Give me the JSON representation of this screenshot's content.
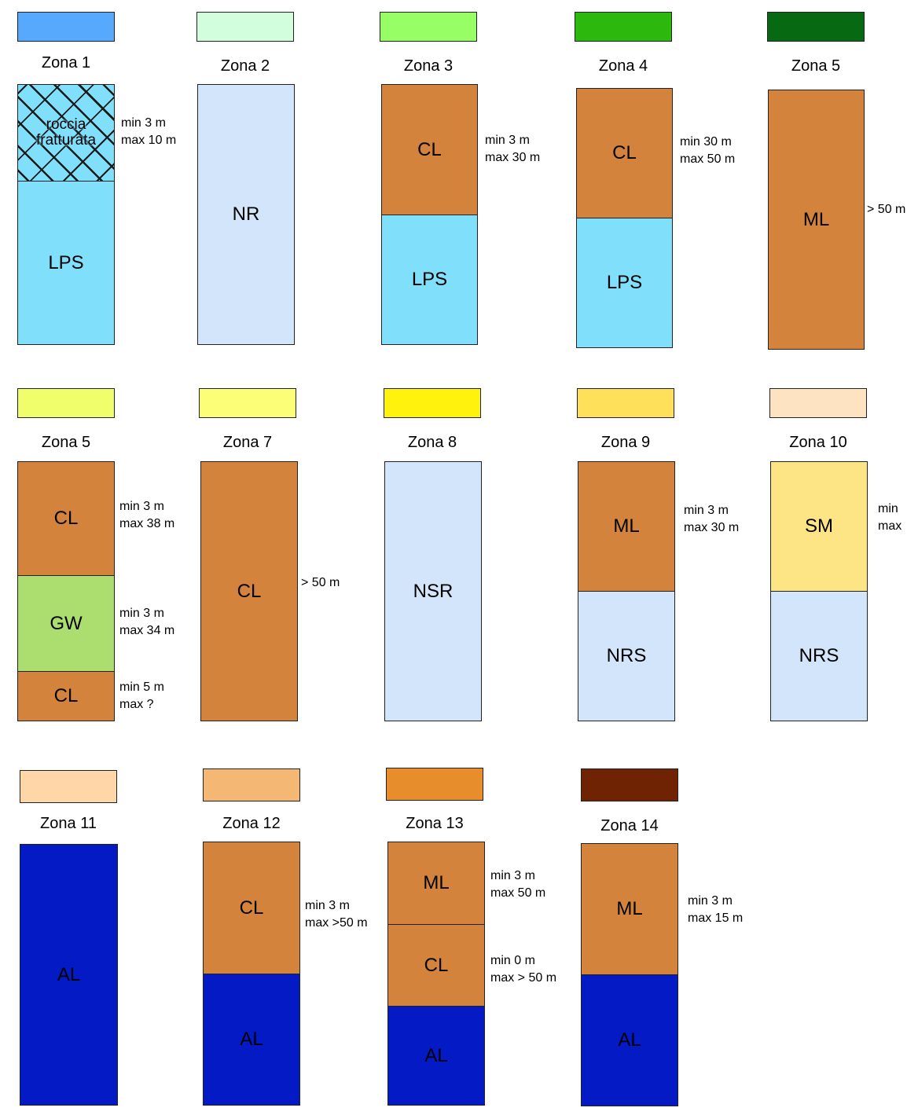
{
  "zones": [
    {
      "name": "Zona 1",
      "swatch_color": "#56a9fd",
      "layers": [
        {
          "label": "roccia\nfratturata",
          "color": "#80e0fc",
          "pattern": "hatch",
          "note": "min 3 m\nmax 10 m"
        },
        {
          "label": "LPS",
          "color": "#80e0fc",
          "note": ""
        }
      ]
    },
    {
      "name": "Zona 2",
      "swatch_color": "#d2fedd",
      "layers": [
        {
          "label": "NR",
          "color": "#d2e5fa",
          "note": ""
        }
      ]
    },
    {
      "name": "Zona 3",
      "swatch_color": "#98fe66",
      "layers": [
        {
          "label": "CL",
          "color": "#d3833c",
          "note": "min 3 m\nmax 30 m"
        },
        {
          "label": "LPS",
          "color": "#80e0fc",
          "note": ""
        }
      ]
    },
    {
      "name": "Zona 4",
      "swatch_color": "#2db80e",
      "layers": [
        {
          "label": "CL",
          "color": "#d3833c",
          "note": "min 30 m\nmax 50 m"
        },
        {
          "label": "LPS",
          "color": "#80e0fc",
          "note": ""
        }
      ]
    },
    {
      "name": "Zona 5",
      "swatch_color": "#076a12",
      "layers": [
        {
          "label": "ML",
          "color": "#d3833c",
          "note": "> 50 m"
        }
      ]
    },
    {
      "name": "Zona 5",
      "swatch_color": "#f0fe6c",
      "layers": [
        {
          "label": "CL",
          "color": "#d3833c",
          "note": "min 3 m\nmax 38 m"
        },
        {
          "label": "GW",
          "color": "#acdd6f",
          "note": "min 3 m\nmax 34 m"
        },
        {
          "label": "CL",
          "color": "#d3833c",
          "note": "min 5 m\nmax ?"
        }
      ]
    },
    {
      "name": "Zona 7",
      "swatch_color": "#fdfe78",
      "layers": [
        {
          "label": "CL",
          "color": "#d3833c",
          "note": "> 50 m"
        }
      ]
    },
    {
      "name": "Zona 8",
      "swatch_color": "#fff20c",
      "layers": [
        {
          "label": "NSR",
          "color": "#d2e5fa",
          "note": ""
        }
      ]
    },
    {
      "name": "Zona 9",
      "swatch_color": "#fee05a",
      "layers": [
        {
          "label": "ML",
          "color": "#d3833c",
          "note": "min 3 m\nmax 30 m"
        },
        {
          "label": "NRS",
          "color": "#d2e5fa",
          "note": ""
        }
      ]
    },
    {
      "name": "Zona 10",
      "swatch_color": "#fee3c3",
      "layers": [
        {
          "label": "SM",
          "color": "#fde485",
          "note": "min\nmax"
        },
        {
          "label": "NRS",
          "color": "#d2e5fa",
          "note": ""
        }
      ]
    },
    {
      "name": "Zona 11",
      "swatch_color": "#fed6a8",
      "layers": [
        {
          "label": "AL",
          "color": "#041ac4",
          "note": ""
        }
      ]
    },
    {
      "name": "Zona 12",
      "swatch_color": "#f5b874",
      "layers": [
        {
          "label": "CL",
          "color": "#d3833c",
          "note": "min 3 m\nmax >50 m"
        },
        {
          "label": "AL",
          "color": "#041ac4",
          "note": ""
        }
      ]
    },
    {
      "name": "Zona 13",
      "swatch_color": "#e78d2b",
      "layers": [
        {
          "label": "ML",
          "color": "#d3833c",
          "note": "min 3 m\nmax 50 m"
        },
        {
          "label": "CL",
          "color": "#d3833c",
          "note": "min 0 m\nmax > 50 m"
        },
        {
          "label": "AL",
          "color": "#041ac4",
          "note": ""
        }
      ]
    },
    {
      "name": "Zona 14",
      "swatch_color": "#6f2303",
      "layers": [
        {
          "label": "ML",
          "color": "#d3833c",
          "note": "min 3 m\nmax 15 m"
        },
        {
          "label": "AL",
          "color": "#041ac4",
          "note": ""
        }
      ]
    }
  ]
}
